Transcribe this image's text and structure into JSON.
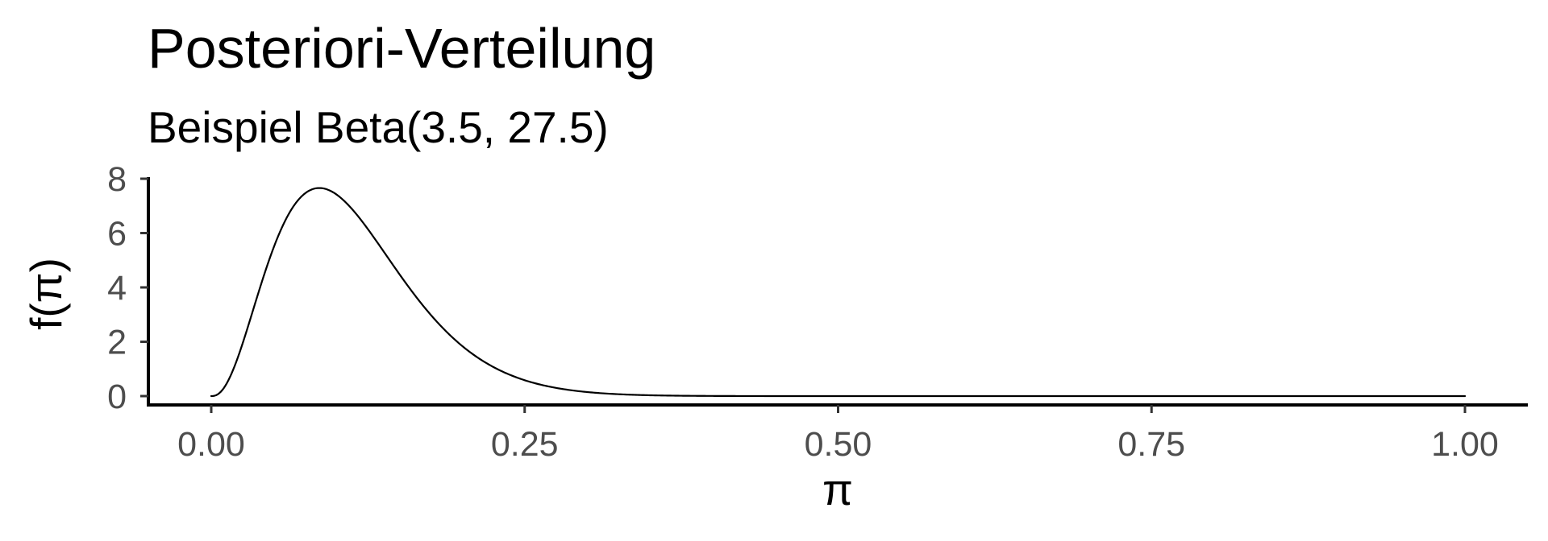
{
  "chart_data": {
    "type": "line",
    "title": "Posteriori-Verteilung",
    "subtitle": "Beispiel Beta(3.5, 27.5)",
    "xlabel": "π",
    "ylabel": "f(π)",
    "xlim": [
      0,
      1
    ],
    "ylim": [
      0,
      8
    ],
    "x_ticks": [
      0,
      0.25,
      0.5,
      0.75,
      1
    ],
    "x_tick_labels": [
      "0.00",
      "0.25",
      "0.50",
      "0.75",
      "1.00"
    ],
    "y_ticks": [
      0,
      2,
      4,
      6,
      8
    ],
    "y_tick_labels": [
      "0",
      "2",
      "4",
      "6",
      "8"
    ],
    "grid": false,
    "distribution": {
      "family": "beta",
      "alpha": 3.5,
      "beta": 27.5
    },
    "series": [
      {
        "x": [
          0,
          0.01,
          0.02,
          0.03,
          0.04,
          0.05,
          0.06,
          0.07,
          0.08,
          0.09,
          0.1,
          0.11,
          0.12,
          0.13,
          0.14,
          0.15,
          0.16,
          0.17,
          0.18,
          0.19,
          0.2,
          0.22,
          0.24,
          0.26,
          0.28,
          0.3,
          0.35,
          0.4,
          0.5,
          0.6,
          0.7,
          0.8,
          0.9,
          1
        ],
        "y": [
          0,
          0.39,
          1.48,
          2.94,
          4.36,
          5.6,
          6.55,
          7.15,
          7.43,
          7.41,
          7.15,
          6.72,
          6.16,
          5.53,
          4.88,
          4.24,
          3.63,
          3.07,
          2.56,
          2.12,
          1.73,
          1.11,
          0.69,
          0.41,
          0.24,
          0.13,
          0.03,
          0.006,
          0,
          0,
          0,
          0,
          0,
          0
        ],
        "color": "#000000"
      }
    ]
  }
}
